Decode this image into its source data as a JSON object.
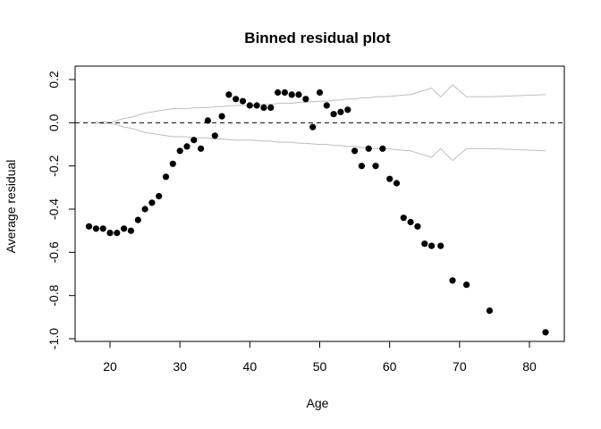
{
  "chart_data": {
    "type": "scatter",
    "title": "Binned residual plot",
    "xlabel": "Age",
    "ylabel": "Average residual",
    "xlim": [
      14.5,
      84
    ],
    "ylim": [
      -1.0,
      0.22
    ],
    "x_ticks": [
      20,
      30,
      40,
      50,
      60,
      70,
      80
    ],
    "y_ticks": [
      -1.0,
      -0.8,
      -0.6,
      -0.4,
      -0.2,
      0.0,
      0.2
    ],
    "y_tick_labels": [
      "-1.0",
      "-0.8",
      "-0.6",
      "-0.4",
      "-0.2",
      "0.0",
      "0.2"
    ],
    "grid": false,
    "reference_line": {
      "y": 0,
      "style": "dashed",
      "color": "#000000"
    },
    "points": [
      {
        "x": 17,
        "y": -0.48
      },
      {
        "x": 18,
        "y": -0.49
      },
      {
        "x": 19,
        "y": -0.49
      },
      {
        "x": 20,
        "y": -0.51
      },
      {
        "x": 21,
        "y": -0.51
      },
      {
        "x": 22,
        "y": -0.49
      },
      {
        "x": 23,
        "y": -0.5
      },
      {
        "x": 24,
        "y": -0.45
      },
      {
        "x": 25,
        "y": -0.4
      },
      {
        "x": 26,
        "y": -0.37
      },
      {
        "x": 27,
        "y": -0.34
      },
      {
        "x": 28,
        "y": -0.25
      },
      {
        "x": 29,
        "y": -0.19
      },
      {
        "x": 30,
        "y": -0.13
      },
      {
        "x": 31,
        "y": -0.11
      },
      {
        "x": 32,
        "y": -0.08
      },
      {
        "x": 33,
        "y": -0.12
      },
      {
        "x": 34,
        "y": 0.01
      },
      {
        "x": 35,
        "y": -0.06
      },
      {
        "x": 36,
        "y": 0.03
      },
      {
        "x": 37,
        "y": 0.13
      },
      {
        "x": 38,
        "y": 0.11
      },
      {
        "x": 39,
        "y": 0.1
      },
      {
        "x": 40,
        "y": 0.08
      },
      {
        "x": 41,
        "y": 0.08
      },
      {
        "x": 42,
        "y": 0.07
      },
      {
        "x": 43,
        "y": 0.07
      },
      {
        "x": 44,
        "y": 0.14
      },
      {
        "x": 45,
        "y": 0.14
      },
      {
        "x": 46,
        "y": 0.13
      },
      {
        "x": 47,
        "y": 0.13
      },
      {
        "x": 48,
        "y": 0.11
      },
      {
        "x": 49,
        "y": -0.02
      },
      {
        "x": 50,
        "y": 0.14
      },
      {
        "x": 51,
        "y": 0.08
      },
      {
        "x": 52,
        "y": 0.04
      },
      {
        "x": 53,
        "y": 0.05
      },
      {
        "x": 54,
        "y": 0.06
      },
      {
        "x": 55,
        "y": -0.13
      },
      {
        "x": 56,
        "y": -0.2
      },
      {
        "x": 57,
        "y": -0.12
      },
      {
        "x": 58,
        "y": -0.2
      },
      {
        "x": 59,
        "y": -0.12
      },
      {
        "x": 60,
        "y": -0.26
      },
      {
        "x": 61,
        "y": -0.28
      },
      {
        "x": 62,
        "y": -0.44
      },
      {
        "x": 63,
        "y": -0.46
      },
      {
        "x": 64,
        "y": -0.48
      },
      {
        "x": 65,
        "y": -0.56
      },
      {
        "x": 66,
        "y": -0.57
      },
      {
        "x": 67.3,
        "y": -0.57
      },
      {
        "x": 69,
        "y": -0.73
      },
      {
        "x": 71,
        "y": -0.75
      },
      {
        "x": 74.3,
        "y": -0.87
      },
      {
        "x": 82.3,
        "y": -0.97
      }
    ],
    "bounds": {
      "color": "#bebebe",
      "x": [
        18,
        19,
        20,
        21,
        22,
        23,
        24,
        25,
        26,
        27,
        28,
        29,
        30,
        31,
        32,
        33,
        34,
        35,
        36,
        37,
        38,
        39,
        40,
        41,
        42,
        43,
        44,
        45,
        46,
        47,
        48,
        49,
        50,
        51,
        52,
        53,
        54,
        55,
        56,
        57,
        58,
        59,
        60,
        61,
        62,
        63,
        64,
        65,
        66,
        67.3,
        69,
        71,
        74.3,
        82.3
      ],
      "upper": [
        -0.005,
        0.005,
        0.0,
        0.01,
        0.02,
        0.025,
        0.035,
        0.045,
        0.05,
        0.055,
        0.06,
        0.065,
        0.065,
        0.065,
        0.07,
        0.07,
        0.07,
        0.075,
        0.075,
        0.078,
        0.08,
        0.08,
        0.08,
        0.082,
        0.085,
        0.085,
        0.09,
        0.09,
        0.09,
        0.095,
        0.095,
        0.098,
        0.1,
        0.1,
        0.105,
        0.105,
        0.11,
        0.11,
        0.115,
        0.115,
        0.12,
        0.12,
        0.122,
        0.125,
        0.128,
        0.13,
        0.14,
        0.15,
        0.16,
        0.12,
        0.175,
        0.12,
        0.12,
        0.13
      ],
      "lower": [
        0.005,
        -0.005,
        0.0,
        -0.01,
        -0.02,
        -0.025,
        -0.035,
        -0.045,
        -0.05,
        -0.055,
        -0.06,
        -0.065,
        -0.065,
        -0.065,
        -0.07,
        -0.07,
        -0.07,
        -0.075,
        -0.075,
        -0.078,
        -0.08,
        -0.08,
        -0.08,
        -0.082,
        -0.085,
        -0.085,
        -0.09,
        -0.09,
        -0.09,
        -0.095,
        -0.095,
        -0.098,
        -0.1,
        -0.1,
        -0.105,
        -0.105,
        -0.11,
        -0.11,
        -0.115,
        -0.115,
        -0.12,
        -0.12,
        -0.122,
        -0.125,
        -0.128,
        -0.13,
        -0.14,
        -0.15,
        -0.16,
        -0.12,
        -0.175,
        -0.12,
        -0.12,
        -0.13
      ]
    },
    "point_color": "#000000"
  }
}
